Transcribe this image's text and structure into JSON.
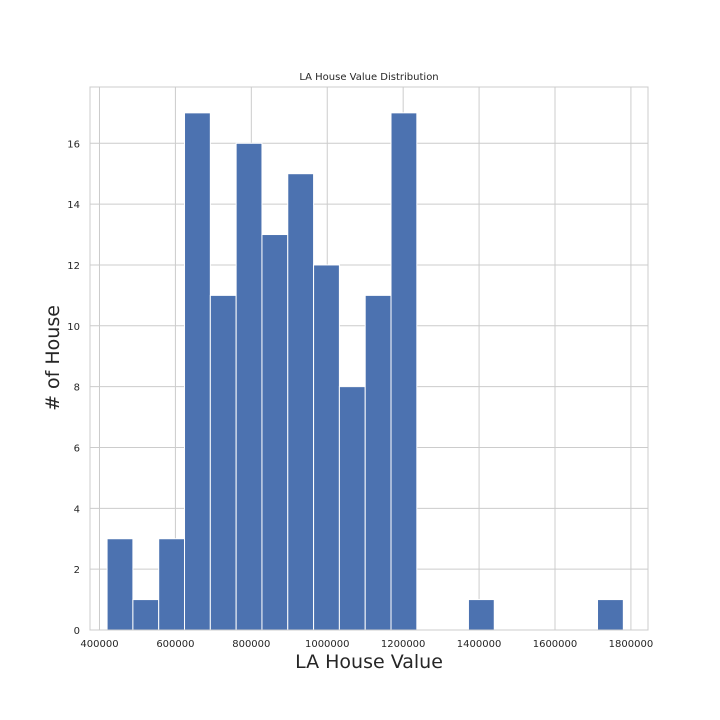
{
  "chart_data": {
    "type": "bar",
    "title": "LA House Value Distribution",
    "xlabel": "LA House Value",
    "ylabel": "# of House",
    "xlim": [
      375000,
      1845000
    ],
    "ylim": [
      0,
      17.85
    ],
    "grid": true,
    "x_ticks": [
      400000,
      600000,
      800000,
      1000000,
      1200000,
      1400000,
      1600000,
      1800000
    ],
    "y_ticks": [
      0,
      2,
      4,
      6,
      8,
      10,
      12,
      14,
      16
    ],
    "bins": [
      {
        "x0": 420000,
        "x1": 488000,
        "count": 3
      },
      {
        "x0": 488000,
        "x1": 556000,
        "count": 1
      },
      {
        "x0": 556000,
        "x1": 624000,
        "count": 3
      },
      {
        "x0": 624000,
        "x1": 692000,
        "count": 17
      },
      {
        "x0": 692000,
        "x1": 760000,
        "count": 11
      },
      {
        "x0": 760000,
        "x1": 828000,
        "count": 16
      },
      {
        "x0": 828000,
        "x1": 896000,
        "count": 13
      },
      {
        "x0": 896000,
        "x1": 964000,
        "count": 15
      },
      {
        "x0": 964000,
        "x1": 1032000,
        "count": 12
      },
      {
        "x0": 1032000,
        "x1": 1100000,
        "count": 8
      },
      {
        "x0": 1100000,
        "x1": 1168000,
        "count": 11
      },
      {
        "x0": 1168000,
        "x1": 1236000,
        "count": 17
      },
      {
        "x0": 1236000,
        "x1": 1304000,
        "count": 0
      },
      {
        "x0": 1304000,
        "x1": 1372000,
        "count": 0
      },
      {
        "x0": 1372000,
        "x1": 1440000,
        "count": 1
      },
      {
        "x0": 1440000,
        "x1": 1508000,
        "count": 0
      },
      {
        "x0": 1508000,
        "x1": 1576000,
        "count": 0
      },
      {
        "x0": 1576000,
        "x1": 1644000,
        "count": 0
      },
      {
        "x0": 1644000,
        "x1": 1712000,
        "count": 0
      },
      {
        "x0": 1712000,
        "x1": 1780000,
        "count": 1
      }
    ],
    "bar_color": "#4c72b0"
  }
}
